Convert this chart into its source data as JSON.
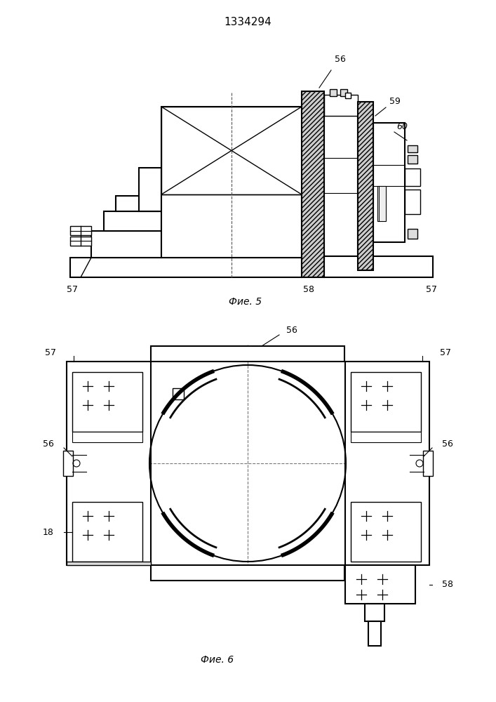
{
  "title": "1334294",
  "fig5_caption": "Фие. 5",
  "fig6_caption": "Фие. 6",
  "bg_color": "#ffffff",
  "line_color": "#000000"
}
